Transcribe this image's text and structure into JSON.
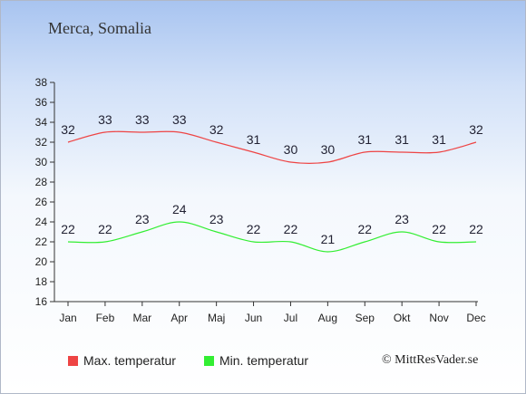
{
  "title": "Merca, Somalia",
  "credit": "© MittResVader.se",
  "chart_data": {
    "type": "line",
    "categories": [
      "Jan",
      "Feb",
      "Mar",
      "Apr",
      "Maj",
      "Jun",
      "Jul",
      "Aug",
      "Sep",
      "Okt",
      "Nov",
      "Dec"
    ],
    "series": [
      {
        "name": "Max. temperatur",
        "color": "#ee4444",
        "values": [
          32,
          33,
          33,
          33,
          32,
          31,
          30,
          30,
          31,
          31,
          31,
          32
        ]
      },
      {
        "name": "Min. temperatur",
        "color": "#33ee33",
        "values": [
          22,
          22,
          23,
          24,
          23,
          22,
          22,
          21,
          22,
          23,
          22,
          22
        ]
      }
    ],
    "yticks": [
      16,
      18,
      20,
      22,
      24,
      26,
      28,
      30,
      32,
      34,
      36,
      38
    ],
    "ylim": [
      16,
      38
    ],
    "grid": false,
    "legend_position": "bottom-left"
  }
}
